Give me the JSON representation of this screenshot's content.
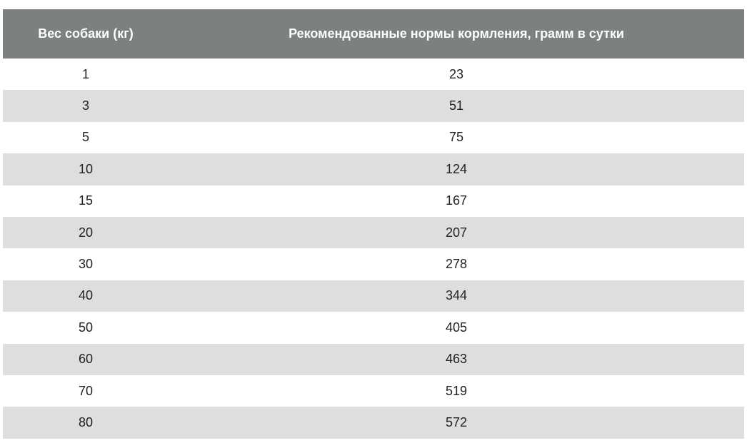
{
  "table": {
    "headers": [
      "Вес собаки (кг)",
      "Рекомендованные нормы кормления, грамм в сутки"
    ],
    "rows": [
      [
        "1",
        "23"
      ],
      [
        "3",
        "51"
      ],
      [
        "5",
        "75"
      ],
      [
        "10",
        "124"
      ],
      [
        "15",
        "167"
      ],
      [
        "20",
        "207"
      ],
      [
        "30",
        "278"
      ],
      [
        "40",
        "344"
      ],
      [
        "50",
        "405"
      ],
      [
        "60",
        "463"
      ],
      [
        "70",
        "519"
      ],
      [
        "80",
        "572"
      ]
    ]
  },
  "colors": {
    "header_bg": "#7c807f",
    "header_text": "#ffffff",
    "stripe_bg": "#dedede",
    "row_bg": "#ffffff",
    "cell_text": "#222222"
  }
}
